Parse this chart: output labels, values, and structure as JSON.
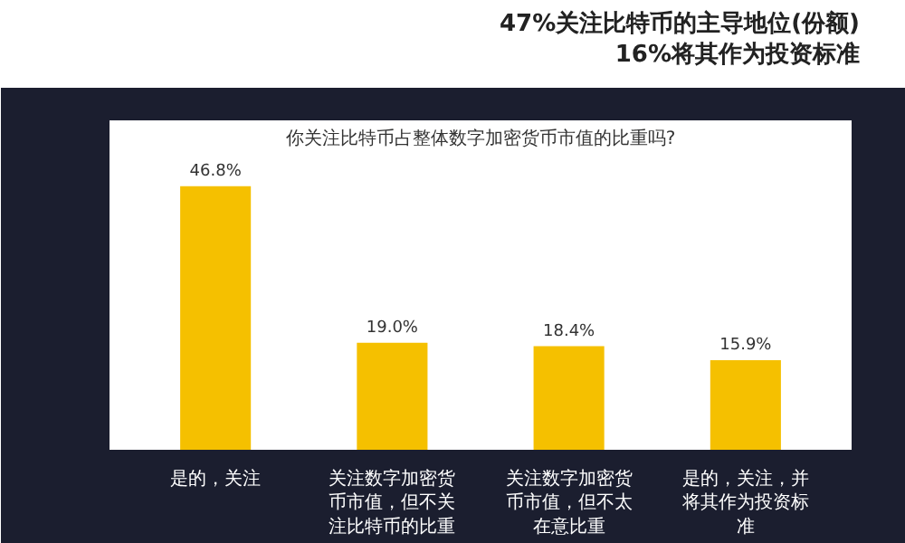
{
  "chart_data": {
    "type": "bar",
    "subtitle": "47%关注比特币的主导地位(份额)\n16%将其作为投资标准",
    "title": "你关注比特币占整体数字加密货币市值的比重吗?",
    "categories": [
      "是的，关注",
      "关注数字加密货币市值，但不关注比特币的比重",
      "关注数字加密货币市值，但不太在意比重",
      "是的，关注，并将其作为投资标准"
    ],
    "values": [
      46.8,
      19.0,
      18.4,
      15.9
    ],
    "color": "#f5c000",
    "value_labels": [
      "46.8%",
      "19.0%",
      "18.4%",
      "15.9%"
    ]
  }
}
